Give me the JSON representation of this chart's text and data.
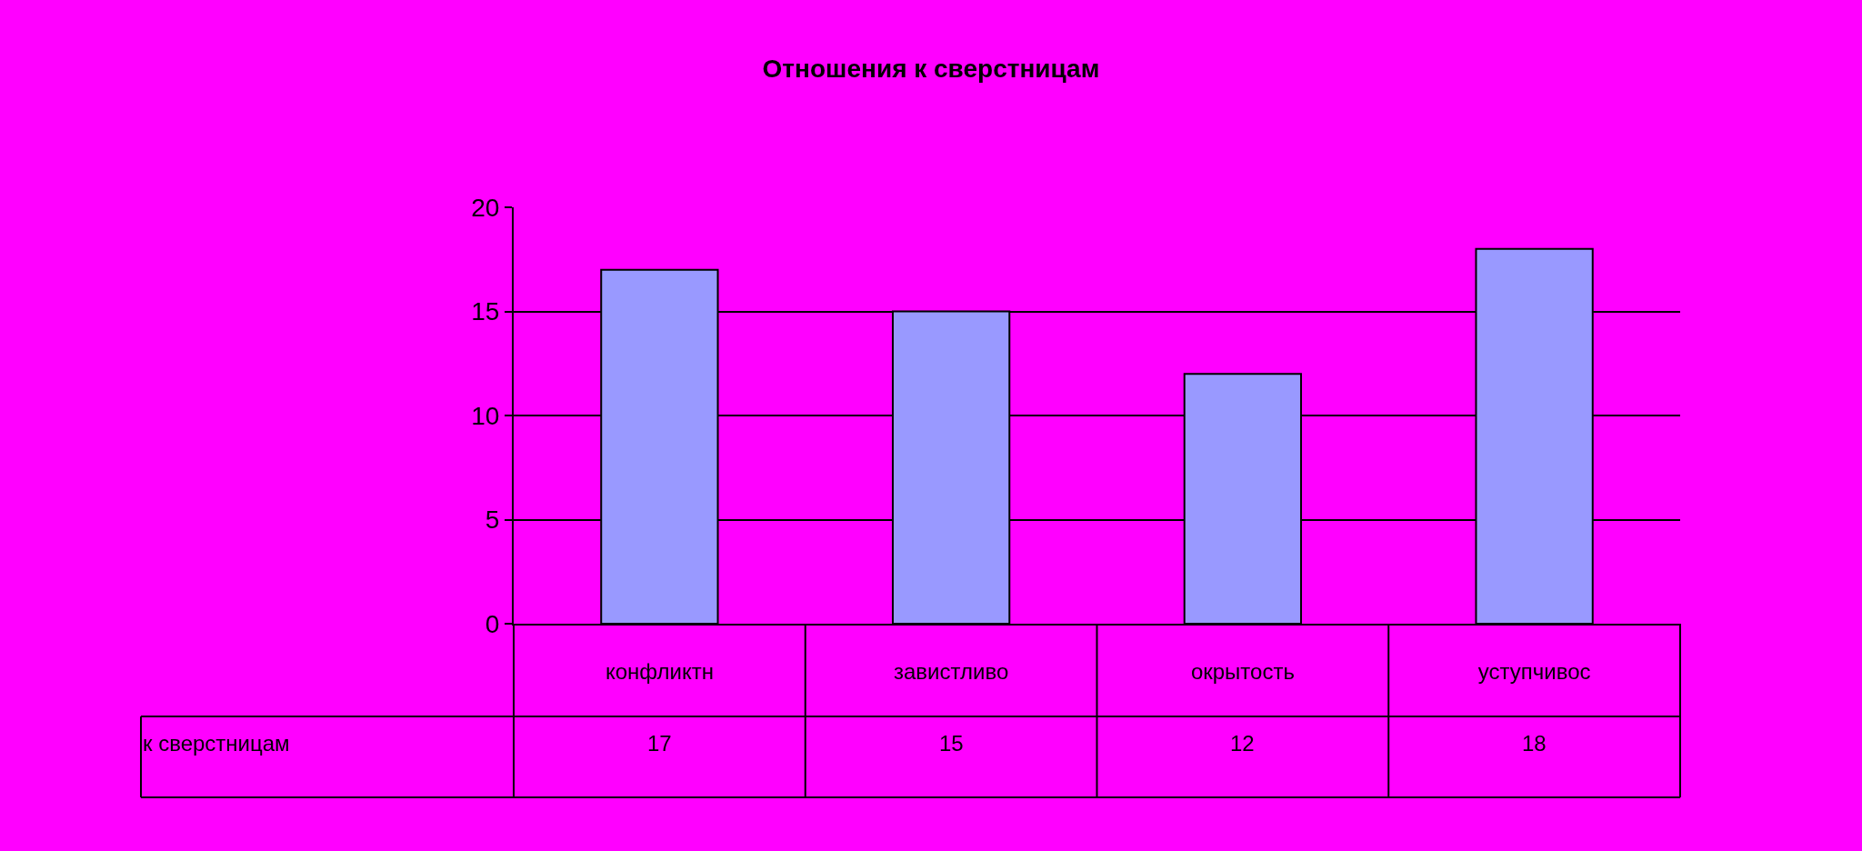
{
  "chart_data": {
    "type": "bar",
    "title": "Отношения к сверстницам",
    "categories": [
      "конфликтн",
      "завистливо",
      "окрытость",
      "уступчивос"
    ],
    "series": [
      {
        "name": "к сверстницам",
        "color": "#9999ff",
        "values": [
          17,
          15,
          12,
          18
        ]
      }
    ],
    "ylim": [
      0,
      20
    ],
    "yticks": [
      0,
      5,
      10,
      15,
      20
    ],
    "grid": "y",
    "legend": false,
    "data_labels": true
  }
}
